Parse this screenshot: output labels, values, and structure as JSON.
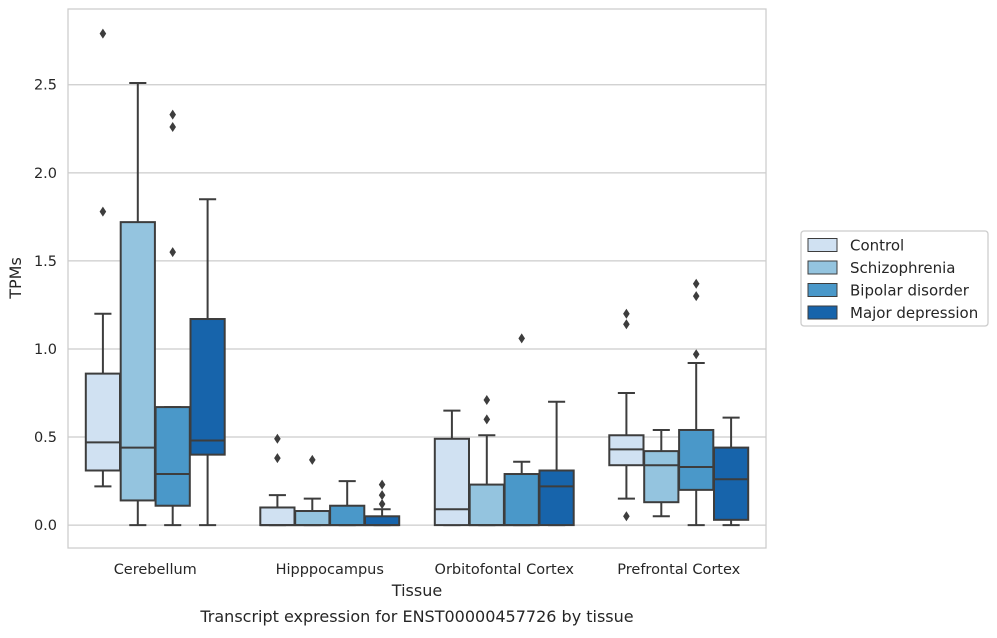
{
  "chart_data": {
    "type": "boxplot",
    "xlabel": "Tissue",
    "ylabel": "TPMs",
    "caption": "Transcript expression for ENST00000457726 by tissue",
    "categories": [
      "Cerebellum",
      "Hipppocampus",
      "Orbitofontal Cortex",
      "Prefrontal Cortex"
    ],
    "ylim": [
      -0.13,
      2.93
    ],
    "yticks": [
      0.0,
      0.5,
      1.0,
      1.5,
      2.0,
      2.5
    ],
    "ytick_labels": [
      "0.0",
      "0.5",
      "1.0",
      "1.5",
      "2.0",
      "2.5"
    ],
    "grid": "horizontal",
    "legend_position": "right",
    "series": [
      {
        "name": "Control",
        "color": "#d0e1f2",
        "boxes": [
          {
            "whislo": 0.22,
            "q1": 0.31,
            "med": 0.47,
            "q3": 0.86,
            "whishi": 1.2,
            "fliers": [
              1.78,
              2.79
            ]
          },
          {
            "whislo": 0.0,
            "q1": 0.0,
            "med": 0.0,
            "q3": 0.1,
            "whishi": 0.17,
            "fliers": [
              0.38,
              0.49
            ]
          },
          {
            "whislo": 0.0,
            "q1": 0.0,
            "med": 0.09,
            "q3": 0.49,
            "whishi": 0.65,
            "fliers": []
          },
          {
            "whislo": 0.15,
            "q1": 0.34,
            "med": 0.43,
            "q3": 0.51,
            "whishi": 0.75,
            "fliers": [
              0.05,
              1.14,
              1.2
            ]
          }
        ]
      },
      {
        "name": "Schizophrenia",
        "color": "#94c4df",
        "boxes": [
          {
            "whislo": 0.0,
            "q1": 0.14,
            "med": 0.44,
            "q3": 1.72,
            "whishi": 2.51,
            "fliers": []
          },
          {
            "whislo": 0.0,
            "q1": 0.0,
            "med": 0.0,
            "q3": 0.08,
            "whishi": 0.15,
            "fliers": [
              0.37
            ]
          },
          {
            "whislo": 0.0,
            "q1": 0.0,
            "med": 0.0,
            "q3": 0.23,
            "whishi": 0.51,
            "fliers": [
              0.6,
              0.71
            ]
          },
          {
            "whislo": 0.05,
            "q1": 0.13,
            "med": 0.34,
            "q3": 0.42,
            "whishi": 0.54,
            "fliers": []
          }
        ]
      },
      {
        "name": "Bipolar disorder",
        "color": "#4a98c9",
        "boxes": [
          {
            "whislo": 0.0,
            "q1": 0.11,
            "med": 0.29,
            "q3": 0.67,
            "whishi": 0.67,
            "fliers": [
              1.55,
              2.26,
              2.33
            ]
          },
          {
            "whislo": 0.0,
            "q1": 0.0,
            "med": 0.0,
            "q3": 0.11,
            "whishi": 0.25,
            "fliers": []
          },
          {
            "whislo": 0.0,
            "q1": 0.0,
            "med": 0.0,
            "q3": 0.29,
            "whishi": 0.36,
            "fliers": [
              1.06
            ]
          },
          {
            "whislo": 0.0,
            "q1": 0.2,
            "med": 0.33,
            "q3": 0.54,
            "whishi": 0.92,
            "fliers": [
              0.97,
              1.3,
              1.37
            ]
          }
        ]
      },
      {
        "name": "Major depression",
        "color": "#1764ab",
        "boxes": [
          {
            "whislo": 0.0,
            "q1": 0.4,
            "med": 0.48,
            "q3": 1.17,
            "whishi": 1.85,
            "fliers": []
          },
          {
            "whislo": 0.0,
            "q1": 0.0,
            "med": 0.0,
            "q3": 0.05,
            "whishi": 0.09,
            "fliers": [
              0.12,
              0.17,
              0.23
            ]
          },
          {
            "whislo": 0.0,
            "q1": 0.0,
            "med": 0.22,
            "q3": 0.31,
            "whishi": 0.7,
            "fliers": []
          },
          {
            "whislo": 0.0,
            "q1": 0.03,
            "med": 0.26,
            "q3": 0.44,
            "whishi": 0.61,
            "fliers": []
          }
        ]
      }
    ]
  }
}
